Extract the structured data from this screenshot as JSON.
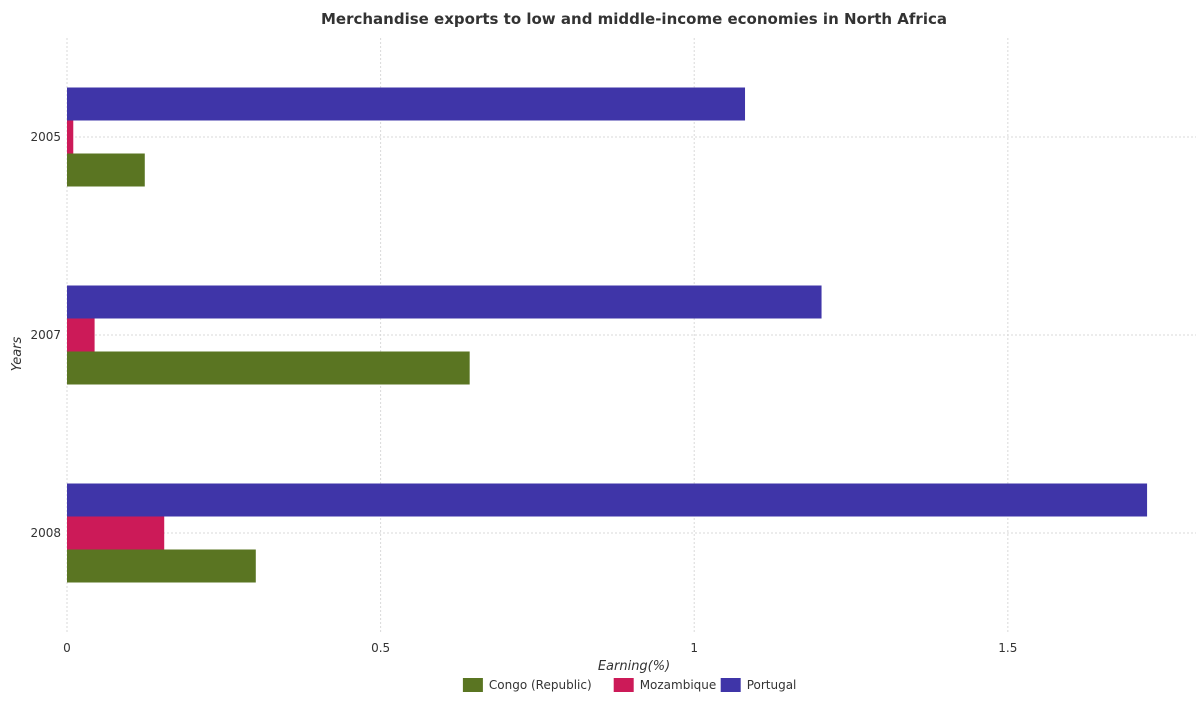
{
  "chart_data": {
    "type": "bar",
    "orientation": "horizontal",
    "title": "Merchandise exports to low and middle-income economies in North Africa",
    "xlabel": "Earning(%)",
    "ylabel": "Years",
    "categories": [
      "2005",
      "2007",
      "2008"
    ],
    "series": [
      {
        "name": "Congo (Republic)",
        "color": "#5a7522",
        "values": [
          0.124,
          0.642,
          0.301
        ]
      },
      {
        "name": "Mozambique",
        "color": "#cc1a58",
        "values": [
          0.01,
          0.044,
          0.155
        ]
      },
      {
        "name": "Portugal",
        "color": "#3f35a8",
        "values": [
          1.081,
          1.203,
          1.722
        ]
      }
    ],
    "xlim": [
      0,
      1.8
    ],
    "xticks": [
      0,
      0.5,
      1,
      1.5
    ],
    "xtick_labels": [
      "0",
      "0.5",
      "1",
      "1.5"
    ],
    "grid": true,
    "legend_position": "bottom"
  }
}
